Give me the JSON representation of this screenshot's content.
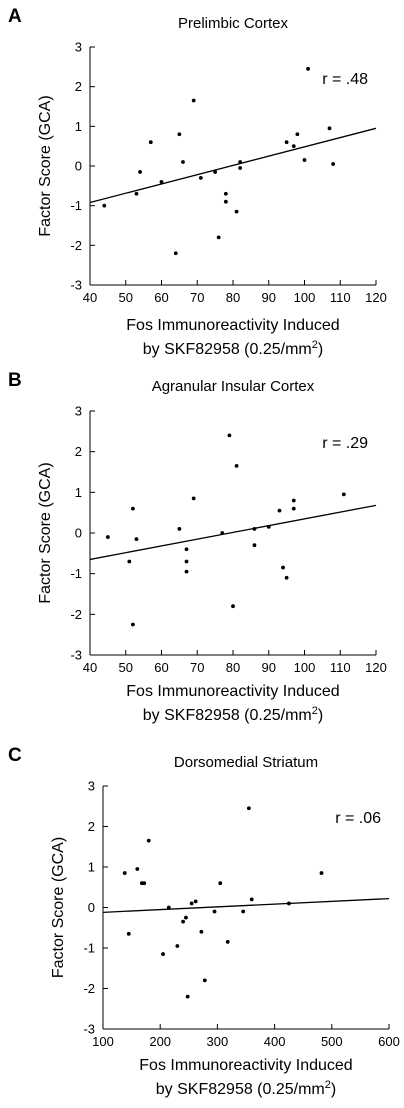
{
  "chart_data": [
    {
      "type": "scatter",
      "panel": "A",
      "title": "Prelimbic Cortex",
      "xlabel_line1": "Fos Immunoreactivity Induced",
      "xlabel_line2": "by SKF82958 (0.25/mm",
      "xlabel_sup": "2",
      "xlabel_close": ")",
      "ylabel": "Factor Score (GCA)",
      "annotation": "r = .48",
      "xlim": [
        40,
        120
      ],
      "ylim": [
        -3,
        3
      ],
      "xticks": [
        "40",
        "50",
        "60",
        "70",
        "80",
        "90",
        "100",
        "110",
        "120"
      ],
      "yticks": [
        "-3",
        "-2",
        "-1",
        "0",
        "1",
        "2",
        "3"
      ],
      "fit_line": {
        "x": [
          40,
          120
        ],
        "y": [
          -0.92,
          0.95
        ]
      },
      "points": [
        {
          "x": 44,
          "y": -1.0
        },
        {
          "x": 53,
          "y": -0.7
        },
        {
          "x": 54,
          "y": -0.15
        },
        {
          "x": 57,
          "y": 0.6
        },
        {
          "x": 60,
          "y": -0.4
        },
        {
          "x": 64,
          "y": -2.2
        },
        {
          "x": 65,
          "y": 0.8
        },
        {
          "x": 66,
          "y": 0.1
        },
        {
          "x": 69,
          "y": 1.65
        },
        {
          "x": 71,
          "y": -0.3
        },
        {
          "x": 75,
          "y": -0.15
        },
        {
          "x": 76,
          "y": -1.8
        },
        {
          "x": 78,
          "y": -0.7
        },
        {
          "x": 78,
          "y": -0.9
        },
        {
          "x": 81,
          "y": -1.15
        },
        {
          "x": 82,
          "y": -0.05
        },
        {
          "x": 82,
          "y": 0.1
        },
        {
          "x": 95,
          "y": 0.6
        },
        {
          "x": 97,
          "y": 0.5
        },
        {
          "x": 98,
          "y": 0.8
        },
        {
          "x": 100,
          "y": 0.15
        },
        {
          "x": 101,
          "y": 2.45
        },
        {
          "x": 107,
          "y": 0.95
        },
        {
          "x": 108,
          "y": 0.05
        }
      ]
    },
    {
      "type": "scatter",
      "panel": "B",
      "title": "Agranular Insular Cortex",
      "xlabel_line1": "Fos Immunoreactivity Induced",
      "xlabel_line2": "by SKF82958 (0.25/mm",
      "xlabel_sup": "2",
      "xlabel_close": ")",
      "ylabel": "Factor Score (GCA)",
      "annotation": "r = .29",
      "xlim": [
        40,
        120
      ],
      "ylim": [
        -3,
        3
      ],
      "xticks": [
        "40",
        "50",
        "60",
        "70",
        "80",
        "90",
        "100",
        "110",
        "120"
      ],
      "yticks": [
        "-3",
        "-2",
        "-1",
        "0",
        "1",
        "2",
        "3"
      ],
      "fit_line": {
        "x": [
          40,
          120
        ],
        "y": [
          -0.65,
          0.68
        ]
      },
      "points": [
        {
          "x": 45,
          "y": -0.1
        },
        {
          "x": 51,
          "y": -0.7
        },
        {
          "x": 52,
          "y": 0.6
        },
        {
          "x": 52,
          "y": -2.25
        },
        {
          "x": 53,
          "y": -0.15
        },
        {
          "x": 65,
          "y": 0.1
        },
        {
          "x": 67,
          "y": -0.4
        },
        {
          "x": 67,
          "y": -0.7
        },
        {
          "x": 67,
          "y": -0.95
        },
        {
          "x": 69,
          "y": 0.85
        },
        {
          "x": 77,
          "y": 0.0
        },
        {
          "x": 79,
          "y": 2.4
        },
        {
          "x": 80,
          "y": -1.8
        },
        {
          "x": 81,
          "y": 1.65
        },
        {
          "x": 86,
          "y": -0.3
        },
        {
          "x": 86,
          "y": 0.1
        },
        {
          "x": 90,
          "y": 0.15
        },
        {
          "x": 93,
          "y": 0.55
        },
        {
          "x": 94,
          "y": -0.85
        },
        {
          "x": 95,
          "y": -1.1
        },
        {
          "x": 97,
          "y": 0.6
        },
        {
          "x": 97,
          "y": 0.8
        },
        {
          "x": 111,
          "y": 0.95
        }
      ]
    },
    {
      "type": "scatter",
      "panel": "C",
      "title": "Dorsomedial Striatum",
      "xlabel_line1": "Fos Immunoreactivity Induced",
      "xlabel_line2": "by SKF82958 (0.25/mm",
      "xlabel_sup": "2",
      "xlabel_close": ")",
      "ylabel": "Factor Score (GCA)",
      "annotation": "r = .06",
      "xlim": [
        100,
        600
      ],
      "ylim": [
        -3,
        3
      ],
      "xticks": [
        "100",
        "200",
        "300",
        "400",
        "500",
        "600"
      ],
      "yticks": [
        "-3",
        "-2",
        "-1",
        "0",
        "1",
        "2",
        "3"
      ],
      "fit_line": {
        "x": [
          100,
          600
        ],
        "y": [
          -0.12,
          0.22
        ]
      },
      "points": [
        {
          "x": 138,
          "y": 0.85
        },
        {
          "x": 145,
          "y": -0.65
        },
        {
          "x": 160,
          "y": 0.95
        },
        {
          "x": 168,
          "y": 0.6
        },
        {
          "x": 172,
          "y": 0.6
        },
        {
          "x": 180,
          "y": 1.65
        },
        {
          "x": 205,
          "y": -1.15
        },
        {
          "x": 215,
          "y": 0.0
        },
        {
          "x": 230,
          "y": -0.95
        },
        {
          "x": 240,
          "y": -0.35
        },
        {
          "x": 245,
          "y": -0.25
        },
        {
          "x": 248,
          "y": -2.2
        },
        {
          "x": 255,
          "y": 0.1
        },
        {
          "x": 262,
          "y": 0.15
        },
        {
          "x": 272,
          "y": -0.6
        },
        {
          "x": 278,
          "y": -1.8
        },
        {
          "x": 295,
          "y": -0.1
        },
        {
          "x": 305,
          "y": 0.6
        },
        {
          "x": 318,
          "y": -0.85
        },
        {
          "x": 345,
          "y": -0.1
        },
        {
          "x": 355,
          "y": 2.45
        },
        {
          "x": 360,
          "y": 0.2
        },
        {
          "x": 425,
          "y": 0.1
        },
        {
          "x": 482,
          "y": 0.85
        }
      ]
    }
  ]
}
